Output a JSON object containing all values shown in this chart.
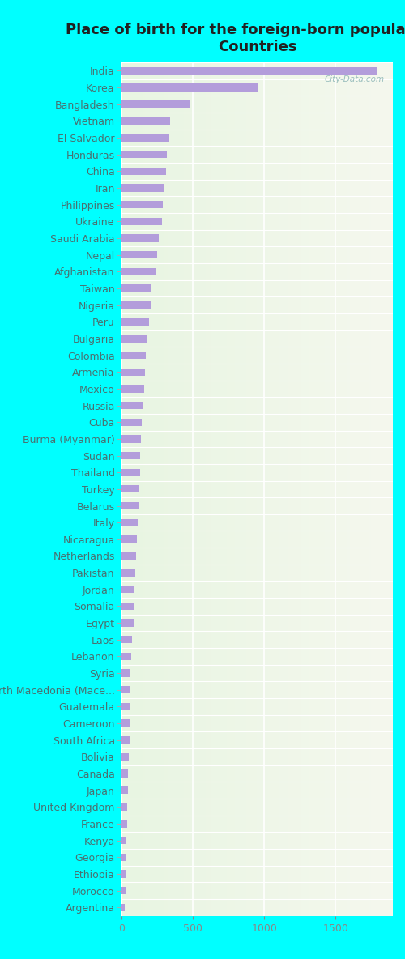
{
  "title": "Place of birth for the foreign-born population -\nCountries",
  "categories": [
    "India",
    "Korea",
    "Bangladesh",
    "Vietnam",
    "El Salvador",
    "Honduras",
    "China",
    "Iran",
    "Philippines",
    "Ukraine",
    "Saudi Arabia",
    "Nepal",
    "Afghanistan",
    "Taiwan",
    "Nigeria",
    "Peru",
    "Bulgaria",
    "Colombia",
    "Armenia",
    "Mexico",
    "Russia",
    "Cuba",
    "Burma (Myanmar)",
    "Sudan",
    "Thailand",
    "Turkey",
    "Belarus",
    "Italy",
    "Nicaragua",
    "Netherlands",
    "Pakistan",
    "Jordan",
    "Somalia",
    "Egypt",
    "Laos",
    "Lebanon",
    "Syria",
    "North Macedonia (Mace...",
    "Guatemala",
    "Cameroon",
    "South Africa",
    "Bolivia",
    "Canada",
    "Japan",
    "United Kingdom",
    "France",
    "Kenya",
    "Georgia",
    "Ethiopia",
    "Morocco",
    "Argentina"
  ],
  "values": [
    1790,
    960,
    480,
    340,
    335,
    320,
    310,
    300,
    290,
    285,
    260,
    250,
    245,
    210,
    205,
    195,
    178,
    172,
    167,
    158,
    148,
    143,
    138,
    133,
    128,
    123,
    118,
    113,
    108,
    103,
    98,
    93,
    88,
    83,
    73,
    68,
    65,
    63,
    60,
    57,
    54,
    50,
    47,
    44,
    41,
    39,
    36,
    33,
    30,
    27,
    24
  ],
  "bar_color": "#b39ddb",
  "background_color": "#00ffff",
  "plot_bg_left": "#e8f5e2",
  "plot_bg_right": "#f5f8ee",
  "xlim": [
    0,
    1900
  ],
  "xticks": [
    0,
    500,
    1000,
    1500
  ],
  "title_fontsize": 13,
  "label_fontsize": 9,
  "tick_fontsize": 9,
  "label_color": "#4a7070",
  "tick_color": "#888888",
  "watermark": "City-Data.com"
}
